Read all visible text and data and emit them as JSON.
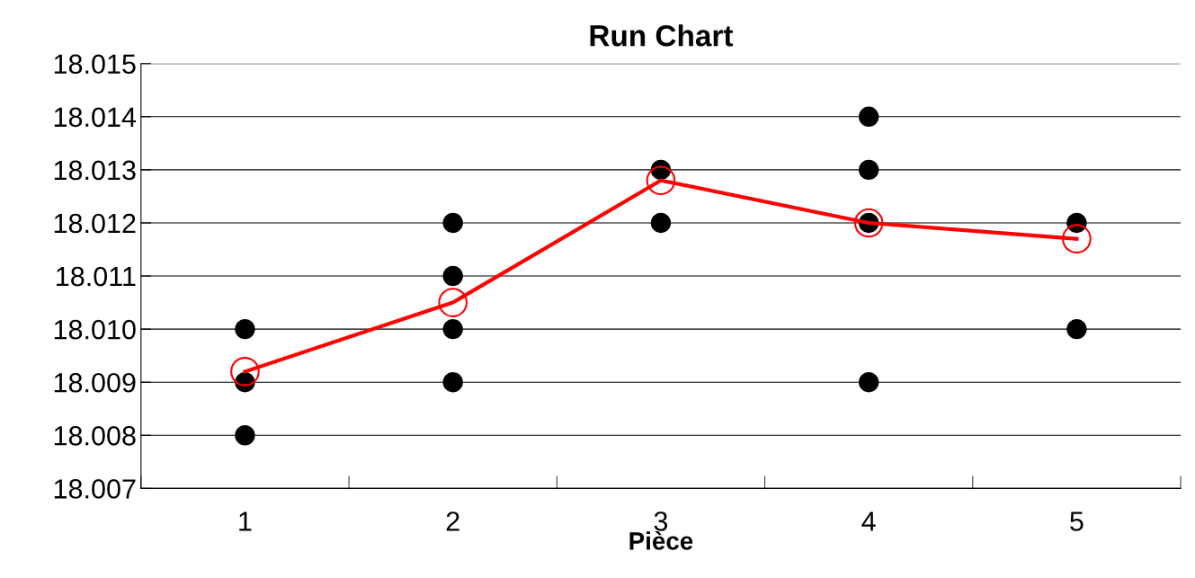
{
  "chart_data": {
    "type": "line",
    "title": "Run Chart",
    "xlabel": "Pièce",
    "categories": [
      "1",
      "2",
      "3",
      "4",
      "5"
    ],
    "series": [
      {
        "type": "scatter",
        "color": "#000000",
        "marker": "circle",
        "x": [
          "1",
          "1",
          "1",
          "2",
          "2",
          "2",
          "2",
          "3",
          "3",
          "4",
          "4",
          "4",
          "4",
          "5",
          "5"
        ],
        "values": [
          18.01,
          18.009,
          18.008,
          18.012,
          18.011,
          18.01,
          18.009,
          18.013,
          18.012,
          18.014,
          18.013,
          18.012,
          18.009,
          18.012,
          18.01
        ]
      },
      {
        "color": "#ff0000",
        "marker": "circle",
        "values": [
          18.0092,
          18.0105,
          18.0128,
          18.012,
          18.0117
        ]
      }
    ],
    "ylim": [
      18.007,
      18.015
    ],
    "yticks": [
      {
        "value": 18.007,
        "label": "18.007"
      },
      {
        "value": 18.008,
        "label": "18.008"
      },
      {
        "value": 18.009,
        "label": "18.009"
      },
      {
        "value": 18.01,
        "label": "18.010"
      },
      {
        "value": 18.011,
        "label": "18.011"
      },
      {
        "value": 18.012,
        "label": "18.012"
      },
      {
        "value": 18.013,
        "label": "18.013"
      },
      {
        "value": 18.014,
        "label": "18.014"
      },
      {
        "value": 18.015,
        "label": "18.015"
      }
    ],
    "grid": "y",
    "legend": false
  }
}
